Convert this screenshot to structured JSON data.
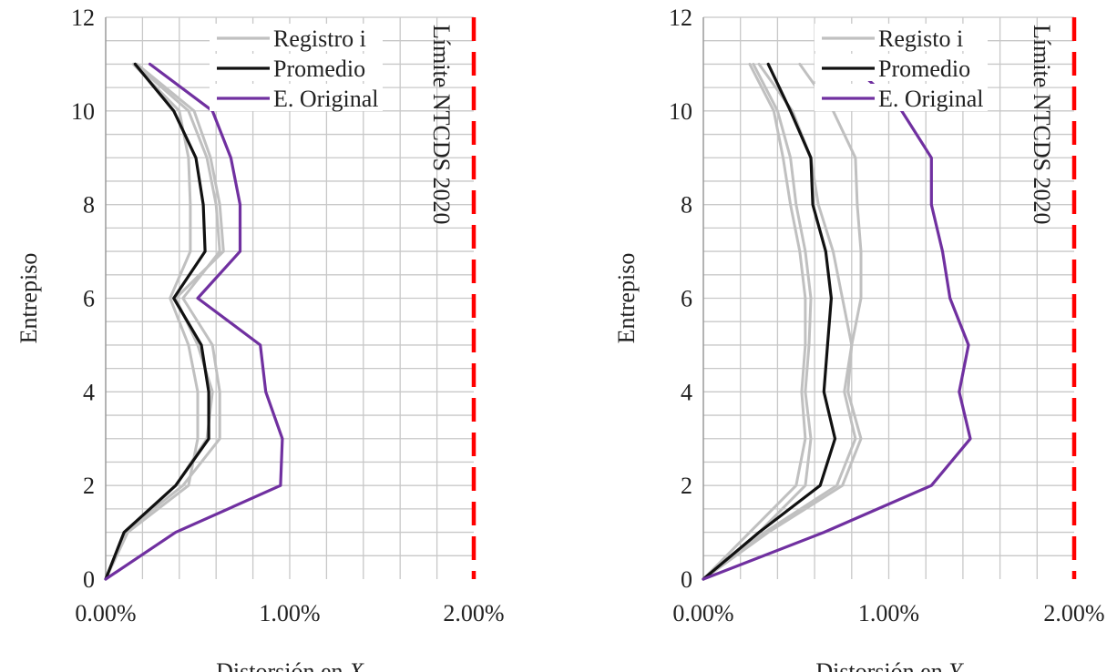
{
  "chart_data": [
    {
      "type": "line",
      "xlabel_text": "Distorsión en ",
      "xlabel_var": "X",
      "ylabel": "Entrepiso",
      "xlim": [
        0,
        2.0
      ],
      "ylim": [
        0,
        12
      ],
      "x_ticks": [
        "0.00%",
        "1.00%",
        "2.00%"
      ],
      "y_ticks": [
        "0",
        "2",
        "4",
        "6",
        "8",
        "10",
        "12"
      ],
      "grid": true,
      "legend": [
        "Registro i",
        "Promedio",
        "E. Original"
      ],
      "legend_position": "top-right",
      "limit_label": "Límite NTCDS 2020",
      "limit_value": 2.0,
      "colors": {
        "registro": "#c0c0c0",
        "promedio": "#111111",
        "original": "#7030a0",
        "limit": "#ff0000",
        "grid": "#c8c8c8"
      },
      "series": [
        {
          "name": "Registro i",
          "role": "registro",
          "x": [
            0,
            0.12,
            0.45,
            0.5,
            0.5,
            0.45,
            0.35,
            0.46,
            0.46,
            0.45,
            0.4,
            0.15
          ],
          "y": [
            0,
            1,
            2,
            3,
            4,
            5,
            6,
            7,
            8,
            9,
            10,
            11
          ]
        },
        {
          "name": "Registro i",
          "role": "registro",
          "x": [
            0,
            0.1,
            0.42,
            0.62,
            0.62,
            0.58,
            0.42,
            0.62,
            0.6,
            0.55,
            0.45,
            0.16
          ],
          "y": [
            0,
            1,
            2,
            3,
            4,
            5,
            6,
            7,
            8,
            9,
            10,
            11
          ]
        },
        {
          "name": "Registro i",
          "role": "registro",
          "x": [
            0,
            0.11,
            0.38,
            0.55,
            0.58,
            0.5,
            0.38,
            0.64,
            0.62,
            0.57,
            0.48,
            0.17
          ],
          "y": [
            0,
            1,
            2,
            3,
            4,
            5,
            6,
            7,
            8,
            9,
            10,
            11
          ]
        },
        {
          "name": "Promedio",
          "role": "promedio",
          "x": [
            0,
            0.1,
            0.38,
            0.56,
            0.56,
            0.52,
            0.37,
            0.54,
            0.53,
            0.49,
            0.37,
            0.16
          ],
          "y": [
            0,
            1,
            2,
            3,
            4,
            5,
            6,
            7,
            8,
            9,
            10,
            11
          ]
        },
        {
          "name": "E. Original",
          "role": "original",
          "x": [
            0,
            0.38,
            0.95,
            0.96,
            0.87,
            0.84,
            0.5,
            0.73,
            0.73,
            0.68,
            0.58,
            0.24
          ],
          "y": [
            0,
            1,
            2,
            3,
            4,
            5,
            6,
            7,
            8,
            9,
            10,
            11
          ]
        }
      ]
    },
    {
      "type": "line",
      "xlabel_text": "Distorsión en ",
      "xlabel_var": "Y",
      "ylabel": "Entrepiso",
      "xlim": [
        0,
        2.0
      ],
      "ylim": [
        0,
        12
      ],
      "x_ticks": [
        "0.00%",
        "1.00%",
        "2.00%"
      ],
      "y_ticks": [
        "0",
        "2",
        "4",
        "6",
        "8",
        "10",
        "12"
      ],
      "grid": true,
      "legend": [
        "Registo i",
        "Promedio",
        "E. Original"
      ],
      "legend_position": "top-right",
      "limit_label": "Límite NTCDS 2020",
      "limit_value": 2.0,
      "colors": {
        "registro": "#c0c0c0",
        "promedio": "#111111",
        "original": "#7030a0",
        "limit": "#ff0000",
        "grid": "#c8c8c8"
      },
      "series": [
        {
          "name": "Registo i",
          "role": "registro",
          "x": [
            0,
            0.25,
            0.5,
            0.55,
            0.53,
            0.55,
            0.55,
            0.52,
            0.47,
            0.43,
            0.38,
            0.25
          ],
          "y": [
            0,
            1,
            2,
            3,
            4,
            5,
            6,
            7,
            8,
            9,
            10,
            11
          ]
        },
        {
          "name": "Registo i",
          "role": "registro",
          "x": [
            0,
            0.3,
            0.55,
            0.58,
            0.55,
            0.57,
            0.58,
            0.55,
            0.5,
            0.47,
            0.4,
            0.27
          ],
          "y": [
            0,
            1,
            2,
            3,
            4,
            5,
            6,
            7,
            8,
            9,
            10,
            11
          ]
        },
        {
          "name": "Registo i",
          "role": "registro",
          "x": [
            0,
            0.35,
            0.75,
            0.85,
            0.78,
            0.8,
            0.85,
            0.85,
            0.83,
            0.82,
            0.7,
            0.52
          ],
          "y": [
            0,
            1,
            2,
            3,
            4,
            5,
            6,
            7,
            8,
            9,
            10,
            11
          ]
        },
        {
          "name": "Registo i",
          "role": "registro",
          "x": [
            0,
            0.33,
            0.72,
            0.82,
            0.76,
            0.8,
            0.75,
            0.7,
            0.62,
            0.58,
            0.48,
            0.3
          ],
          "y": [
            0,
            1,
            2,
            3,
            4,
            5,
            6,
            7,
            8,
            9,
            10,
            11
          ]
        },
        {
          "name": "Promedio",
          "role": "promedio",
          "x": [
            0,
            0.3,
            0.63,
            0.71,
            0.65,
            0.67,
            0.69,
            0.66,
            0.59,
            0.58,
            0.47,
            0.35
          ],
          "y": [
            0,
            1,
            2,
            3,
            4,
            5,
            6,
            7,
            8,
            9,
            10,
            11
          ]
        },
        {
          "name": "E. Original",
          "role": "original",
          "x": [
            0,
            0.65,
            1.23,
            1.44,
            1.38,
            1.43,
            1.33,
            1.29,
            1.23,
            1.23,
            1.07,
            0.8
          ],
          "y": [
            0,
            1,
            2,
            3,
            4,
            5,
            6,
            7,
            8,
            9,
            10,
            11
          ]
        }
      ]
    }
  ]
}
